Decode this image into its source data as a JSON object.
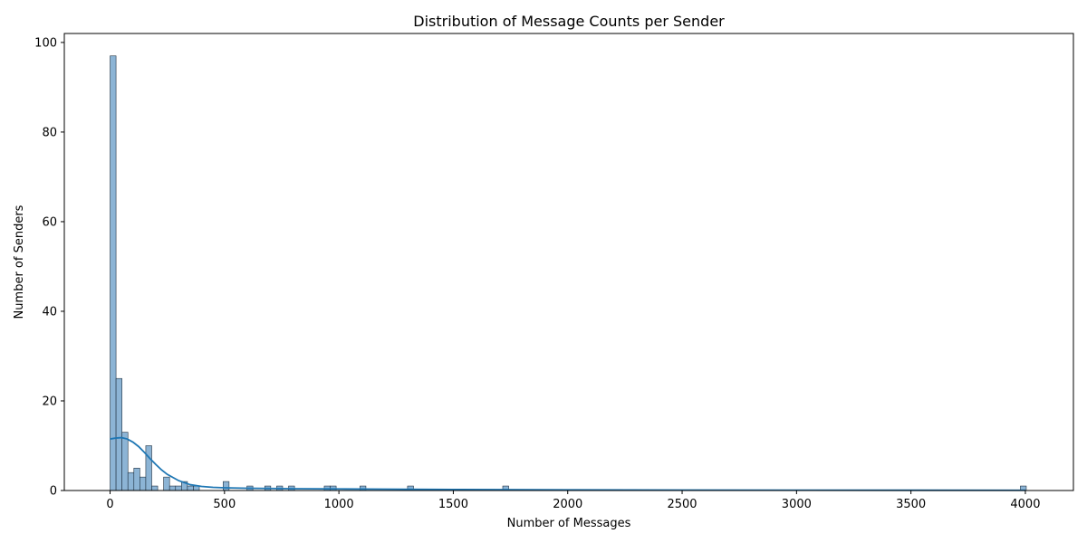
{
  "chart_data": {
    "type": "bar",
    "subtype": "histogram with kde",
    "title": "Distribution of Message Counts per Sender",
    "xlabel": "Number of Messages",
    "ylabel": "Number of Senders",
    "xlim": [
      -200,
      4210
    ],
    "ylim": [
      0,
      102
    ],
    "xticks": [
      "0",
      "500",
      "1000",
      "1500",
      "2000",
      "2500",
      "3000",
      "3500",
      "4000"
    ],
    "yticks": [
      "0",
      "20",
      "40",
      "60",
      "80",
      "100"
    ],
    "xtick_values": [
      0,
      500,
      1000,
      1500,
      2000,
      2500,
      3000,
      3500,
      4000
    ],
    "ytick_values": [
      0,
      20,
      40,
      60,
      80,
      100
    ],
    "bin_width": 26,
    "bins": [
      {
        "x": 0,
        "count": 97
      },
      {
        "x": 26,
        "count": 25
      },
      {
        "x": 52,
        "count": 13
      },
      {
        "x": 78,
        "count": 4
      },
      {
        "x": 104,
        "count": 5
      },
      {
        "x": 130,
        "count": 3
      },
      {
        "x": 156,
        "count": 10
      },
      {
        "x": 182,
        "count": 1
      },
      {
        "x": 234,
        "count": 3
      },
      {
        "x": 260,
        "count": 1
      },
      {
        "x": 286,
        "count": 1
      },
      {
        "x": 312,
        "count": 2
      },
      {
        "x": 338,
        "count": 1
      },
      {
        "x": 364,
        "count": 1
      },
      {
        "x": 494,
        "count": 2
      },
      {
        "x": 598,
        "count": 1
      },
      {
        "x": 676,
        "count": 1
      },
      {
        "x": 728,
        "count": 1
      },
      {
        "x": 780,
        "count": 1
      },
      {
        "x": 936,
        "count": 1
      },
      {
        "x": 962,
        "count": 1
      },
      {
        "x": 1092,
        "count": 1
      },
      {
        "x": 1300,
        "count": 1
      },
      {
        "x": 1716,
        "count": 1
      },
      {
        "x": 3978,
        "count": 1
      }
    ],
    "kde": {
      "x": [
        0,
        25,
        50,
        75,
        100,
        125,
        150,
        175,
        200,
        225,
        250,
        300,
        350,
        400,
        450,
        500,
        600,
        700,
        800,
        1000,
        1200,
        1500,
        2000,
        2500,
        3000,
        3500,
        4000
      ],
      "y": [
        11.5,
        11.7,
        11.8,
        11.5,
        10.8,
        9.8,
        8.5,
        7.1,
        5.8,
        4.6,
        3.6,
        2.2,
        1.3,
        0.9,
        0.7,
        0.6,
        0.5,
        0.45,
        0.4,
        0.35,
        0.3,
        0.22,
        0.15,
        0.1,
        0.08,
        0.06,
        0.05
      ]
    },
    "grid": false,
    "colors": {
      "bar_fill": "#8cb4d5",
      "bar_edge": "#1f3040",
      "kde_line": "#1f77b4",
      "axis": "#000000"
    }
  }
}
